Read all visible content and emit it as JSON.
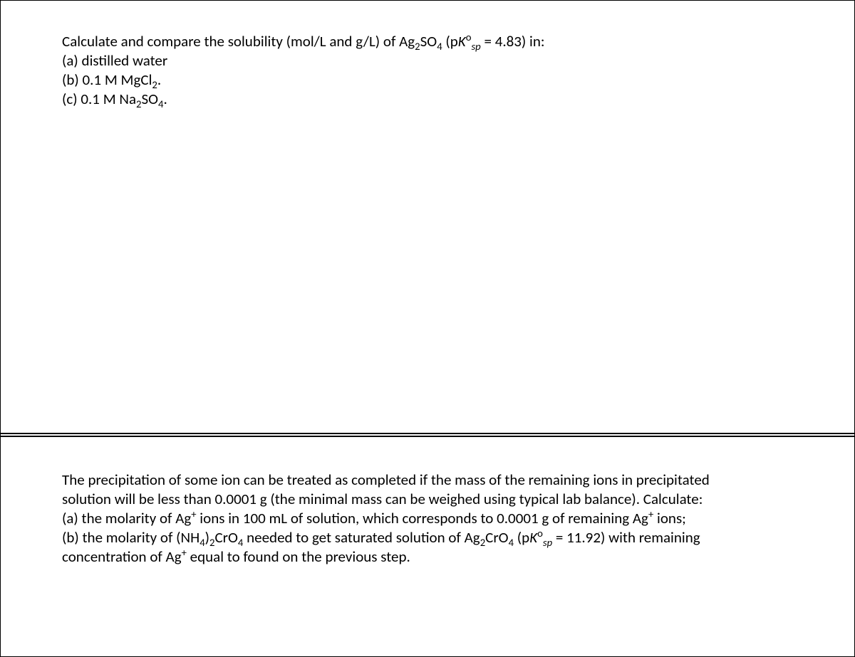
{
  "question1": {
    "prompt_pre": "Calculate and compare the solubility (mol/L and g/L) of Ag",
    "prompt_sub1": "2",
    "prompt_mid1": "SO",
    "prompt_sub2": "4",
    "prompt_mid2": " (p",
    "prompt_ital": "K",
    "prompt_sup": "o",
    "prompt_subsp": "sp",
    "prompt_post": " = 4.83) in:",
    "a": "(a) distilled water",
    "b_pre": "(b) 0.1 M MgCl",
    "b_sub": "2",
    "b_post": ".",
    "c_pre": "(c) 0.1 M Na",
    "c_sub1": "2",
    "c_mid": "SO",
    "c_sub2": "4",
    "c_post": "."
  },
  "question2": {
    "line1": "The precipitation of some ion can be treated as completed if the mass of the remaining ions in precipitated",
    "line2": "solution will be less than 0.0001 g (the minimal mass can be weighed using typical lab balance). Calculate:",
    "a_pre": "(a)  the molarity of Ag",
    "a_sup": "+",
    "a_mid": " ions in 100 mL of solution, which corresponds to 0.0001 g of remaining Ag",
    "a_sup2": "+",
    "a_post": " ions;",
    "b_pre": "(b)  the molarity of (NH",
    "b_sub1": "4",
    "b_mid1": ")",
    "b_sub2": "2",
    "b_mid2": "CrO",
    "b_sub3": "4",
    "b_mid3": " needed to get saturated solution of Ag",
    "b_sub4": "2",
    "b_mid4": "CrO",
    "b_sub5": "4",
    "b_mid5": " (p",
    "b_ital": "K",
    "b_sup": "o",
    "b_subsp": "sp",
    "b_post": " = 11.92) with remaining",
    "line5_pre": "concentration of Ag",
    "line5_sup": "+",
    "line5_post": " equal to found on the previous step."
  }
}
